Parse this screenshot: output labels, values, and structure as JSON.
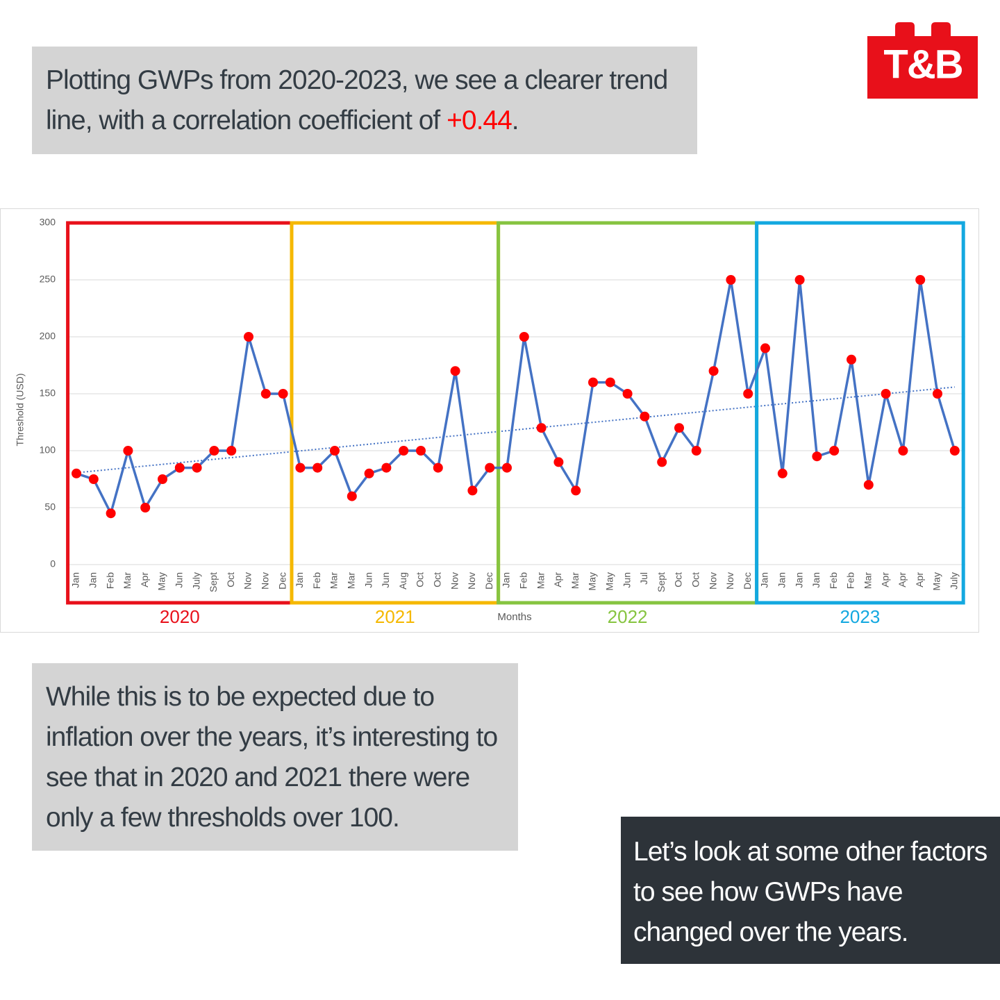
{
  "logo": "T&B",
  "intro": {
    "text": "Plotting GWPs from 2020-2023, we see a clearer trend line, with a correlation coefficient of ",
    "highlight": "+0.44",
    "end": "."
  },
  "middle_text": "While this is to be expected due to inflation over the years, it’s interesting to see that in 2020 and 2021 there were only a few thresholds over 100.",
  "closing_text": "Let’s look at some other factors to see how GWPs have changed over the years.",
  "chart_data": {
    "type": "line",
    "ylabel": "Threshold (USD)",
    "xlabel": "Months",
    "ylim": [
      0,
      300
    ],
    "yticks": [
      0,
      50,
      100,
      150,
      200,
      250,
      300
    ],
    "grid": true,
    "line_color": "#4472c4",
    "marker_color": "#ff0000",
    "trendline": true,
    "series": [
      {
        "name": "2020",
        "color": "#e8101a",
        "categories": [
          "Jan",
          "Jan",
          "Feb",
          "Mar",
          "Apr",
          "May",
          "Jun",
          "July",
          "Sept",
          "Oct",
          "Nov",
          "Nov",
          "Dec"
        ],
        "values": [
          80,
          75,
          45,
          100,
          50,
          75,
          85,
          85,
          100,
          100,
          200,
          150,
          150
        ]
      },
      {
        "name": "2021",
        "color": "#f5b800",
        "categories": [
          "Jan",
          "Feb",
          "Mar",
          "Mar",
          "Jun",
          "Jun",
          "Aug",
          "Oct",
          "Oct",
          "Nov",
          "Nov",
          "Dec"
        ],
        "values": [
          85,
          85,
          100,
          60,
          80,
          85,
          100,
          100,
          85,
          170,
          65,
          85
        ]
      },
      {
        "name": "2022",
        "color": "#86c440",
        "categories": [
          "Jan",
          "Feb",
          "Mar",
          "Apr",
          "Mar",
          "May",
          "May",
          "Jun",
          "Jul",
          "Sept",
          "Oct",
          "Oct",
          "Nov",
          "Nov",
          "Dec"
        ],
        "values": [
          85,
          200,
          120,
          90,
          65,
          160,
          160,
          150,
          130,
          90,
          120,
          100,
          170,
          250,
          150
        ]
      },
      {
        "name": "2023",
        "color": "#13a8e0",
        "categories": [
          "Jan",
          "Jan",
          "Jan",
          "Jan",
          "Feb",
          "Feb",
          "Mar",
          "Apr",
          "Apr",
          "Apr",
          "May",
          "July"
        ],
        "values": [
          190,
          80,
          250,
          95,
          100,
          180,
          70,
          150,
          100,
          250,
          150,
          100
        ]
      }
    ]
  }
}
